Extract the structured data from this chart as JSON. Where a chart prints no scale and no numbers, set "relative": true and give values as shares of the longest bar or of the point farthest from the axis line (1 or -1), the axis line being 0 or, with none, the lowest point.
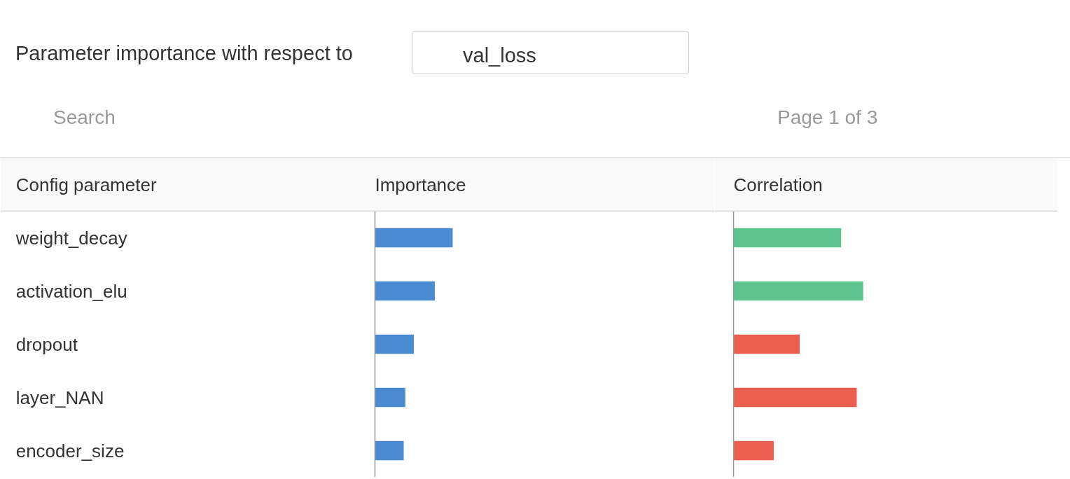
{
  "chart_data": [
    {
      "type": "bar",
      "orientation": "horizontal",
      "relative": true,
      "tick_labels": "y",
      "title": "Importance",
      "ylabel": "Config parameter",
      "categories": [
        "weight_decay",
        "activation_elu",
        "dropout",
        "layer_NAN",
        "encoder_size"
      ],
      "values": [
        1,
        0.77,
        0.5,
        0.39,
        0.37
      ],
      "color": "#4a8bd2",
      "annotations": [
        "Parameter importance with respect to",
        "val_loss",
        "Search",
        "Page 1 of 3"
      ]
    },
    {
      "type": "bar",
      "orientation": "horizontal",
      "relative": true,
      "tick_labels": false,
      "title": "Correlation",
      "categories": [
        null,
        null,
        null,
        null,
        null
      ],
      "values": [
        0.83,
        1,
        0.51,
        0.95,
        0.31
      ],
      "colors": [
        "#5ec38f",
        "#5ec38f",
        "#ec5f50",
        "#ec5f50",
        "#ec5f50"
      ]
    }
  ]
}
